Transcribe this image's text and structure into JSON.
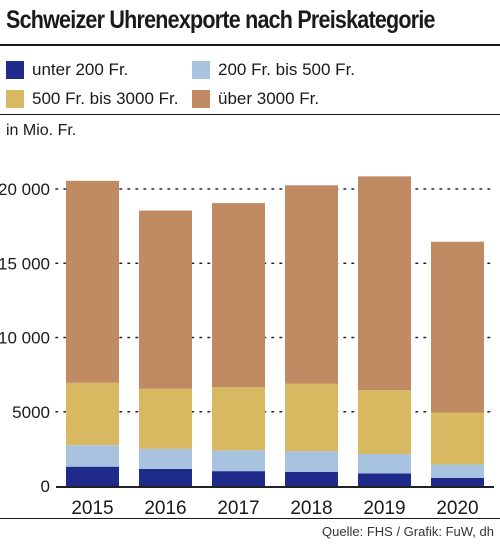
{
  "title": "Schweizer Uhrenexporte nach Preiskategorie",
  "unit_label": "in Mio. Fr.",
  "source": "Quelle: FHS / Grafik: FuW, dh",
  "colors": {
    "under200": "#1f2a8a",
    "200to500": "#a7c3e0",
    "500to3000": "#d9b862",
    "over3000": "#c08a62"
  },
  "legend": [
    {
      "label": "unter 200 Fr.",
      "color": "#1f2a8a"
    },
    {
      "label": "200 Fr. bis 500 Fr.",
      "color": "#a7c3e0"
    },
    {
      "label": "500 Fr. bis 3000 Fr.",
      "color": "#d9b862"
    },
    {
      "label": "über 3000 Fr.",
      "color": "#c08a62"
    }
  ],
  "chart_data": {
    "type": "bar",
    "stacked": true,
    "title": "Schweizer Uhrenexporte nach Preiskategorie",
    "ylabel": "in Mio. Fr.",
    "categories": [
      "2015",
      "2016",
      "2017",
      "2018",
      "2019",
      "2020"
    ],
    "ylim": [
      0,
      20000
    ],
    "yticks": [
      0,
      5000,
      10000,
      15000,
      20000
    ],
    "ytick_labels": [
      "0",
      "5000",
      "10 000",
      "15 000",
      "20 000"
    ],
    "grid": "horizontal dotted",
    "legend_position": "top",
    "series": [
      {
        "name": "unter 200 Fr.",
        "color": "#1f2a8a",
        "values": [
          1300,
          1150,
          1000,
          950,
          850,
          550
        ]
      },
      {
        "name": "200 Fr. bis 500 Fr.",
        "color": "#a7c3e0",
        "values": [
          1450,
          1350,
          1400,
          1400,
          1300,
          900
        ]
      },
      {
        "name": "500 Fr. bis 3000 Fr.",
        "color": "#d9b862",
        "values": [
          4200,
          4050,
          4250,
          4550,
          4300,
          3500
        ]
      },
      {
        "name": "über 3000 Fr.",
        "color": "#c08a62",
        "values": [
          13600,
          12000,
          12400,
          13350,
          14400,
          11500
        ]
      }
    ]
  }
}
